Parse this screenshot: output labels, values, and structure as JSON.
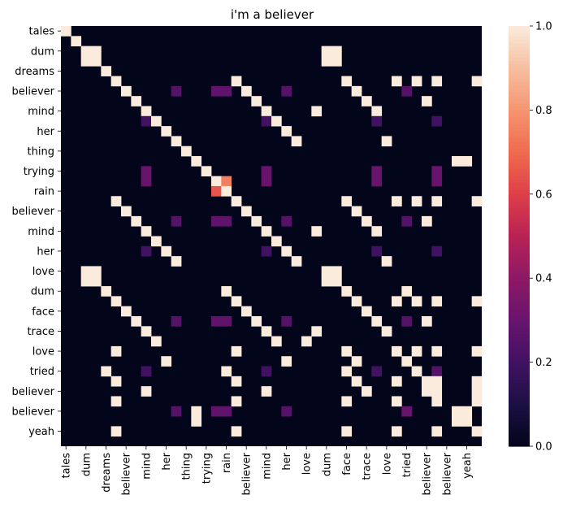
{
  "chart_data": {
    "type": "heatmap",
    "title": "i'm a believer",
    "tokens": [
      "tales",
      "dum",
      "dum",
      "dreams",
      "believer",
      "believer",
      "mind",
      "mind",
      "her",
      "her",
      "thing",
      "thing",
      "trying",
      "trying",
      "rain",
      "rain",
      "believer",
      "believer",
      "mind",
      "mind",
      "her",
      "her",
      "love",
      "love",
      "dum",
      "dum",
      "face",
      "face",
      "trace",
      "trace",
      "love",
      "love",
      "tried",
      "tried",
      "believer",
      "believer",
      "believer",
      "believer",
      "yeah",
      "yeah",
      "yeah",
      "yeah"
    ],
    "x_tick_labels": [
      "tales",
      "dum",
      "dreams",
      "believer",
      "mind",
      "her",
      "thing",
      "trying",
      "rain",
      "believer",
      "mind",
      "her",
      "love",
      "dum",
      "face",
      "trace",
      "love",
      "tried",
      "believer",
      "believer",
      "yeah"
    ],
    "y_tick_labels": [
      "tales",
      "dum",
      "dreams",
      "believer",
      "mind",
      "her",
      "thing",
      "trying",
      "rain",
      "believer",
      "mind",
      "her",
      "love",
      "dum",
      "face",
      "trace",
      "love",
      "tried",
      "believer",
      "believer",
      "yeah"
    ],
    "ones": [
      [
        0,
        0
      ],
      [
        1,
        1
      ],
      [
        2,
        2
      ],
      [
        2,
        3
      ],
      [
        2,
        26
      ],
      [
        2,
        27
      ],
      [
        3,
        2
      ],
      [
        3,
        3
      ],
      [
        3,
        26
      ],
      [
        3,
        27
      ],
      [
        4,
        4
      ],
      [
        5,
        5
      ],
      [
        5,
        17
      ],
      [
        5,
        28
      ],
      [
        5,
        33
      ],
      [
        5,
        35
      ],
      [
        5,
        37
      ],
      [
        5,
        41
      ],
      [
        6,
        6
      ],
      [
        6,
        18
      ],
      [
        6,
        29
      ],
      [
        7,
        7
      ],
      [
        7,
        19
      ],
      [
        7,
        30
      ],
      [
        7,
        36
      ],
      [
        8,
        8
      ],
      [
        8,
        20
      ],
      [
        8,
        25
      ],
      [
        8,
        31
      ],
      [
        9,
        9
      ],
      [
        9,
        21
      ],
      [
        10,
        10
      ],
      [
        10,
        22
      ],
      [
        11,
        11
      ],
      [
        11,
        23
      ],
      [
        11,
        32
      ],
      [
        12,
        12
      ],
      [
        13,
        13
      ],
      [
        13,
        39
      ],
      [
        13,
        40
      ],
      [
        14,
        14
      ],
      [
        15,
        15
      ],
      [
        15,
        16
      ],
      [
        16,
        15
      ],
      [
        16,
        16
      ],
      [
        17,
        5
      ],
      [
        17,
        17
      ],
      [
        17,
        28
      ],
      [
        17,
        33
      ],
      [
        17,
        35
      ],
      [
        17,
        37
      ],
      [
        17,
        41
      ],
      [
        18,
        6
      ],
      [
        18,
        18
      ],
      [
        18,
        29
      ],
      [
        19,
        7
      ],
      [
        19,
        19
      ],
      [
        19,
        30
      ],
      [
        19,
        36
      ],
      [
        20,
        8
      ],
      [
        20,
        20
      ],
      [
        20,
        25
      ],
      [
        20,
        31
      ],
      [
        21,
        9
      ],
      [
        21,
        21
      ],
      [
        22,
        10
      ],
      [
        22,
        22
      ],
      [
        23,
        11
      ],
      [
        23,
        23
      ],
      [
        23,
        32
      ],
      [
        24,
        2
      ],
      [
        24,
        3
      ],
      [
        24,
        26
      ],
      [
        24,
        27
      ],
      [
        25,
        2
      ],
      [
        25,
        3
      ],
      [
        25,
        26
      ],
      [
        25,
        27
      ],
      [
        26,
        4
      ],
      [
        26,
        16
      ],
      [
        26,
        28
      ],
      [
        26,
        34
      ],
      [
        27,
        5
      ],
      [
        27,
        17
      ],
      [
        27,
        29
      ],
      [
        27,
        33
      ],
      [
        27,
        35
      ],
      [
        27,
        37
      ],
      [
        27,
        41
      ],
      [
        28,
        6
      ],
      [
        28,
        18
      ],
      [
        28,
        30
      ],
      [
        29,
        7
      ],
      [
        29,
        19
      ],
      [
        29,
        31
      ],
      [
        29,
        36
      ],
      [
        30,
        8
      ],
      [
        30,
        20
      ],
      [
        30,
        25
      ],
      [
        30,
        32
      ],
      [
        31,
        9
      ],
      [
        31,
        21
      ],
      [
        31,
        24
      ],
      [
        32,
        5
      ],
      [
        32,
        17
      ],
      [
        32,
        28
      ],
      [
        32,
        33
      ],
      [
        32,
        35
      ],
      [
        32,
        37
      ],
      [
        32,
        41
      ],
      [
        33,
        10
      ],
      [
        33,
        22
      ],
      [
        33,
        29
      ],
      [
        33,
        34
      ],
      [
        34,
        4
      ],
      [
        34,
        16
      ],
      [
        34,
        28
      ],
      [
        34,
        35
      ],
      [
        35,
        5
      ],
      [
        35,
        17
      ],
      [
        35,
        29
      ],
      [
        35,
        33
      ],
      [
        35,
        36
      ],
      [
        35,
        37
      ],
      [
        35,
        41
      ],
      [
        36,
        8
      ],
      [
        36,
        20
      ],
      [
        36,
        30
      ],
      [
        36,
        36
      ],
      [
        36,
        37
      ],
      [
        36,
        41
      ],
      [
        37,
        5
      ],
      [
        37,
        17
      ],
      [
        37,
        28
      ],
      [
        37,
        33
      ],
      [
        37,
        37
      ],
      [
        37,
        41
      ],
      [
        38,
        13
      ],
      [
        38,
        39
      ],
      [
        38,
        40
      ],
      [
        39,
        13
      ],
      [
        39,
        39
      ],
      [
        39,
        40
      ],
      [
        40,
        5
      ],
      [
        40,
        17
      ],
      [
        40,
        28
      ],
      [
        40,
        33
      ],
      [
        40,
        37
      ],
      [
        40,
        41
      ]
    ],
    "partials": [
      [
        6,
        11,
        0.25
      ],
      [
        6,
        15,
        0.28
      ],
      [
        6,
        16,
        0.28
      ],
      [
        6,
        22,
        0.25
      ],
      [
        6,
        34,
        0.25
      ],
      [
        8,
        8,
        1.0
      ],
      [
        9,
        8,
        0.2
      ],
      [
        9,
        20,
        0.2
      ],
      [
        9,
        31,
        0.2
      ],
      [
        9,
        37,
        0.2
      ],
      [
        14,
        8,
        0.3
      ],
      [
        14,
        20,
        0.3
      ],
      [
        14,
        31,
        0.3
      ],
      [
        14,
        37,
        0.3
      ],
      [
        15,
        8,
        0.3
      ],
      [
        15,
        20,
        0.3
      ],
      [
        15,
        31,
        0.3
      ],
      [
        15,
        37,
        0.3
      ],
      [
        15,
        15,
        1.0
      ],
      [
        15,
        16,
        0.75
      ],
      [
        16,
        15,
        0.65
      ],
      [
        16,
        16,
        1.0
      ],
      [
        19,
        11,
        0.25
      ],
      [
        19,
        15,
        0.28
      ],
      [
        19,
        16,
        0.28
      ],
      [
        19,
        22,
        0.25
      ],
      [
        19,
        34,
        0.25
      ],
      [
        22,
        8,
        0.2
      ],
      [
        22,
        20,
        0.2
      ],
      [
        22,
        31,
        0.2
      ],
      [
        22,
        37,
        0.2
      ],
      [
        29,
        11,
        0.25
      ],
      [
        29,
        15,
        0.28
      ],
      [
        29,
        16,
        0.28
      ],
      [
        29,
        22,
        0.25
      ],
      [
        29,
        34,
        0.25
      ],
      [
        34,
        8,
        0.2
      ],
      [
        34,
        20,
        0.2
      ],
      [
        34,
        31,
        0.2
      ],
      [
        34,
        37,
        0.25
      ],
      [
        38,
        11,
        0.25
      ],
      [
        38,
        15,
        0.28
      ],
      [
        38,
        16,
        0.28
      ],
      [
        38,
        22,
        0.25
      ],
      [
        38,
        34,
        0.3
      ]
    ],
    "vmin": 0,
    "vmax": 1,
    "colorbar_ticks": [
      "0.0",
      "0.2",
      "0.4",
      "0.6",
      "0.8",
      "1.0"
    ],
    "colormap": "rocket",
    "grid": false,
    "legend": "colorbar-right"
  }
}
